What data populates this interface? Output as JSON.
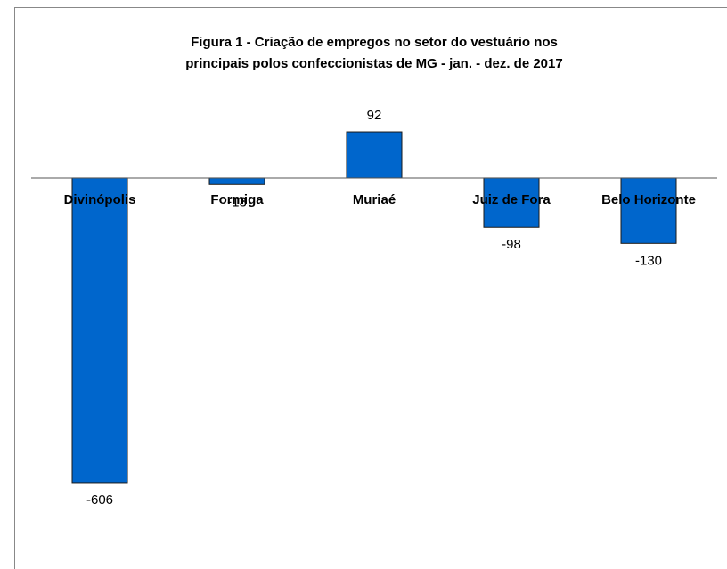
{
  "chart_data": {
    "type": "bar",
    "title": [
      "Figura 1 - Criação de empregos no setor do vestuário nos",
      "principais polos confeccionistas de MG - jan. - dez. de 2017"
    ],
    "categories": [
      "Divinópolis",
      "Formiga",
      "Muriaé",
      "Juiz de Fora",
      "Belo Horizonte"
    ],
    "values": [
      -606,
      -13,
      92,
      -98,
      -130
    ],
    "color": "#0066cc",
    "ylim": [
      -700,
      150
    ]
  }
}
